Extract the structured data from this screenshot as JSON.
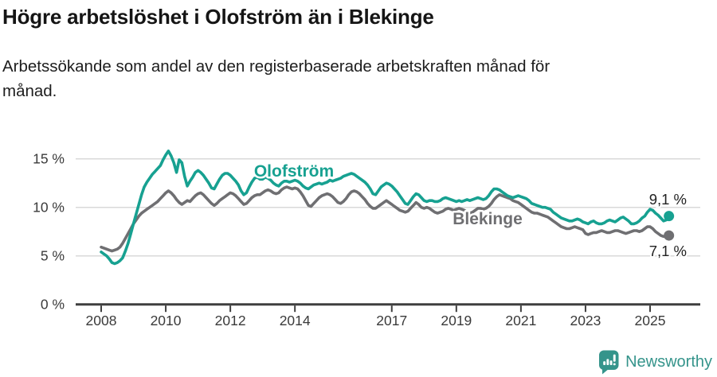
{
  "header": {
    "title": "Högre arbetslöshet i Olofström än i Blekinge",
    "subtitle_lines": [
      "Arbetssökande som andel av den registerbaserade arbetskraften månad för",
      "månad."
    ]
  },
  "footer": {
    "brand": "Newsworthy",
    "logo_icon": "bar-chart-speech-bubble-icon"
  },
  "colors": {
    "olofstrom_teal": "#17a191",
    "blekinge_gray": "#6f6f72",
    "grid": "#d9d9d9",
    "axis": "#3f3f3f",
    "tick_text": "#3a3a3a",
    "brand_teal": "#35948b",
    "value_label_text": "#222222"
  },
  "chart_data": {
    "type": "line",
    "title": "Högre arbetslöshet i Olofström än i Blekinge",
    "subtitle": "Arbetssökande som andel av den registerbaserade arbetskraften månad för månad.",
    "x_unit": "month",
    "x_start_year": 2008,
    "x_range": [
      "2008-01",
      "2025-08"
    ],
    "x_tick_labels": [
      "2008",
      "2010",
      "2012",
      "2014",
      "2017",
      "2019",
      "2021",
      "2023",
      "2025"
    ],
    "y_ticks": [
      0,
      5,
      10,
      15
    ],
    "y_tick_labels": [
      "0 %",
      "5 %",
      "10 %",
      "15 %"
    ],
    "ylim": [
      0,
      16.5
    ],
    "grid": "horizontal",
    "legend": "inline-series-labels",
    "series": [
      {
        "name": "Blekinge",
        "color": "#6f6f72",
        "end_label": "7,1 %",
        "end_value": 7.1,
        "values": [
          5.9,
          5.8,
          5.7,
          5.6,
          5.5,
          5.6,
          5.7,
          5.9,
          6.3,
          6.8,
          7.3,
          7.8,
          8.3,
          8.7,
          9.1,
          9.4,
          9.6,
          9.8,
          10.0,
          10.2,
          10.4,
          10.6,
          10.9,
          11.2,
          11.5,
          11.7,
          11.5,
          11.2,
          10.8,
          10.5,
          10.3,
          10.5,
          10.7,
          10.6,
          10.9,
          11.2,
          11.4,
          11.5,
          11.3,
          11.0,
          10.7,
          10.4,
          10.2,
          10.4,
          10.7,
          10.9,
          11.1,
          11.3,
          11.5,
          11.4,
          11.2,
          10.9,
          10.6,
          10.3,
          10.4,
          10.7,
          11.0,
          11.2,
          11.3,
          11.3,
          11.5,
          11.7,
          11.8,
          11.7,
          11.5,
          11.4,
          11.5,
          11.8,
          12.0,
          12.1,
          12.0,
          11.9,
          12.0,
          11.9,
          11.6,
          11.2,
          10.7,
          10.2,
          10.1,
          10.4,
          10.7,
          11.0,
          11.2,
          11.3,
          11.4,
          11.3,
          11.1,
          10.8,
          10.5,
          10.4,
          10.6,
          10.9,
          11.3,
          11.6,
          11.7,
          11.6,
          11.4,
          11.1,
          10.8,
          10.4,
          10.1,
          9.9,
          9.9,
          10.1,
          10.3,
          10.5,
          10.7,
          10.5,
          10.3,
          10.1,
          9.9,
          9.7,
          9.6,
          9.5,
          9.6,
          9.9,
          10.2,
          10.5,
          10.3,
          10.0,
          9.9,
          10.0,
          9.9,
          9.7,
          9.5,
          9.4,
          9.5,
          9.6,
          9.8,
          9.9,
          9.8,
          9.7,
          9.8,
          9.9,
          9.8,
          9.7,
          9.5,
          9.4,
          9.5,
          9.7,
          9.9,
          9.9,
          9.8,
          9.9,
          10.1,
          10.4,
          10.8,
          11.1,
          11.3,
          11.2,
          11.1,
          11.0,
          10.9,
          10.7,
          10.6,
          10.5,
          10.3,
          10.1,
          9.9,
          9.7,
          9.5,
          9.4,
          9.4,
          9.3,
          9.2,
          9.1,
          9.0,
          8.8,
          8.6,
          8.4,
          8.2,
          8.0,
          7.9,
          7.8,
          7.8,
          7.9,
          8.0,
          7.9,
          7.8,
          7.7,
          7.3,
          7.2,
          7.3,
          7.4,
          7.4,
          7.5,
          7.6,
          7.5,
          7.4,
          7.4,
          7.5,
          7.6,
          7.6,
          7.5,
          7.4,
          7.3,
          7.4,
          7.5,
          7.6,
          7.6,
          7.5,
          7.6,
          7.8,
          8.0,
          8.0,
          7.8,
          7.5,
          7.3,
          7.1,
          7.0,
          7.0,
          7.1
        ]
      },
      {
        "name": "Olofström",
        "color": "#17a191",
        "end_label": "9,1 %",
        "end_value": 9.1,
        "values": [
          5.4,
          5.2,
          5.0,
          4.7,
          4.3,
          4.2,
          4.3,
          4.5,
          4.8,
          5.5,
          6.3,
          7.3,
          8.3,
          9.3,
          10.3,
          11.3,
          12.1,
          12.6,
          13.0,
          13.4,
          13.7,
          14.0,
          14.3,
          14.9,
          15.4,
          15.8,
          15.3,
          14.6,
          13.6,
          14.9,
          14.6,
          13.2,
          12.2,
          12.7,
          13.1,
          13.6,
          13.8,
          13.6,
          13.3,
          12.9,
          12.5,
          12.0,
          11.9,
          12.4,
          12.9,
          13.3,
          13.5,
          13.5,
          13.3,
          13.0,
          12.7,
          12.3,
          11.7,
          11.3,
          11.5,
          12.1,
          12.6,
          13.0,
          13.1,
          12.9,
          12.9,
          13.1,
          13.0,
          12.8,
          12.5,
          12.3,
          12.2,
          12.5,
          12.7,
          12.7,
          12.6,
          12.7,
          12.8,
          12.7,
          12.5,
          12.2,
          12.0,
          11.9,
          12.1,
          12.3,
          12.4,
          12.5,
          12.4,
          12.5,
          12.6,
          12.8,
          12.7,
          12.8,
          12.9,
          13.0,
          13.2,
          13.3,
          13.4,
          13.5,
          13.4,
          13.2,
          13.0,
          12.8,
          12.6,
          12.3,
          11.9,
          11.4,
          11.3,
          11.7,
          12.1,
          12.3,
          12.5,
          12.4,
          12.2,
          11.9,
          11.6,
          11.2,
          10.8,
          10.4,
          10.3,
          10.7,
          11.1,
          11.4,
          11.3,
          11.0,
          10.7,
          10.6,
          10.7,
          10.7,
          10.6,
          10.6,
          10.7,
          10.9,
          11.0,
          10.9,
          10.8,
          10.7,
          10.6,
          10.7,
          10.6,
          10.7,
          10.8,
          10.7,
          10.8,
          10.9,
          11.0,
          10.9,
          10.8,
          10.9,
          11.2,
          11.6,
          11.9,
          11.9,
          11.8,
          11.6,
          11.4,
          11.2,
          11.1,
          11.0,
          11.1,
          11.2,
          11.1,
          11.0,
          10.9,
          10.7,
          10.4,
          10.3,
          10.2,
          10.1,
          10.0,
          10.0,
          9.9,
          9.8,
          9.5,
          9.3,
          9.1,
          8.9,
          8.8,
          8.7,
          8.6,
          8.6,
          8.7,
          8.8,
          8.7,
          8.5,
          8.4,
          8.3,
          8.5,
          8.6,
          8.4,
          8.3,
          8.3,
          8.4,
          8.6,
          8.7,
          8.6,
          8.5,
          8.7,
          8.9,
          9.0,
          8.8,
          8.6,
          8.3,
          8.3,
          8.4,
          8.6,
          8.9,
          9.1,
          9.5,
          9.8,
          9.7,
          9.4,
          9.2,
          8.9,
          8.6,
          8.7,
          9.1
        ]
      }
    ]
  }
}
